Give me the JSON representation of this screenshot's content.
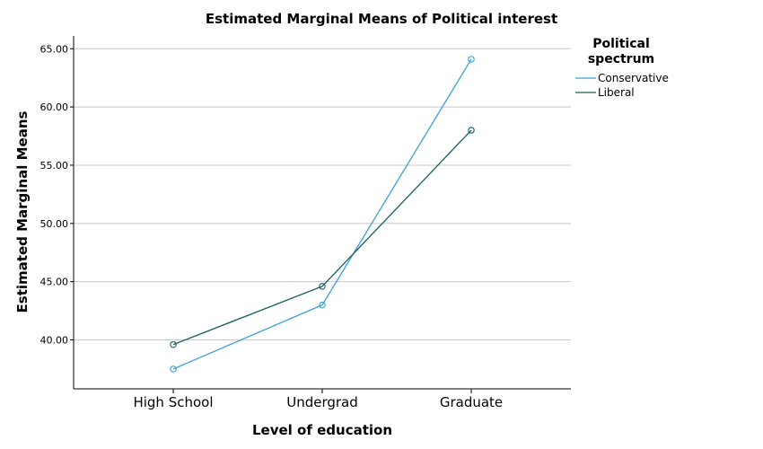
{
  "chart_data": {
    "type": "line",
    "title": "Estimated Marginal Means of Political interest",
    "xlabel": "Level of education",
    "ylabel": "Estimated Marginal Means",
    "categories": [
      "High School",
      "Undergrad",
      "Graduate"
    ],
    "yticks": [
      "40.00",
      "45.00",
      "50.00",
      "55.00",
      "60.00",
      "65.00"
    ],
    "ytick_values": [
      40,
      45,
      50,
      55,
      60,
      65
    ],
    "ylim": [
      35.8,
      66.1
    ],
    "grid": true,
    "legend": {
      "title_lines": [
        "Political",
        "spectrum"
      ],
      "placement": "right"
    },
    "series": [
      {
        "name": "Conservative",
        "color": "#3a9fd8",
        "values": [
          37.5,
          43.0,
          64.1
        ]
      },
      {
        "name": "Liberal",
        "color": "#155f5f",
        "values": [
          39.6,
          44.6,
          58.0
        ]
      }
    ]
  }
}
